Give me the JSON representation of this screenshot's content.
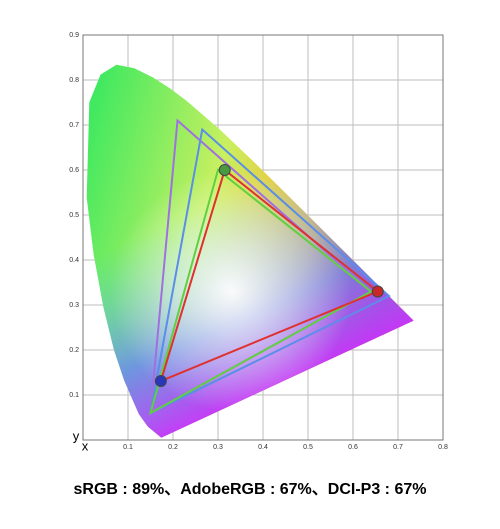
{
  "chart_data": {
    "type": "chromaticity",
    "xlim": [
      0,
      0.8
    ],
    "ylim": [
      0,
      0.9
    ],
    "xticks": [
      0.1,
      0.2,
      0.3,
      0.4,
      0.5,
      0.6,
      0.7,
      0.8
    ],
    "yticks": [
      0.1,
      0.2,
      0.3,
      0.4,
      0.5,
      0.6,
      0.7,
      0.8,
      0.9
    ],
    "x_label": "x",
    "y_label": "y",
    "grid": true,
    "caption": "sRGB : 89%、AdobeRGB : 67%、DCI-P3 : 67%",
    "series": [
      {
        "color": "#a070e0",
        "x": [
          0.64,
          0.21,
          0.15
        ],
        "y": [
          0.33,
          0.71,
          0.06
        ]
      },
      {
        "color": "#5a8ee8",
        "x": [
          0.68,
          0.265,
          0.15
        ],
        "y": [
          0.32,
          0.69,
          0.06
        ]
      },
      {
        "color": "#60d040",
        "x": [
          0.64,
          0.3,
          0.15
        ],
        "y": [
          0.33,
          0.6,
          0.06
        ]
      },
      {
        "color": "#e03030",
        "x": [
          0.655,
          0.315,
          0.173
        ],
        "y": [
          0.33,
          0.6,
          0.131
        ],
        "marker_colors": [
          "#c82828",
          "#4a9a40",
          "#2838b8"
        ]
      }
    ]
  }
}
